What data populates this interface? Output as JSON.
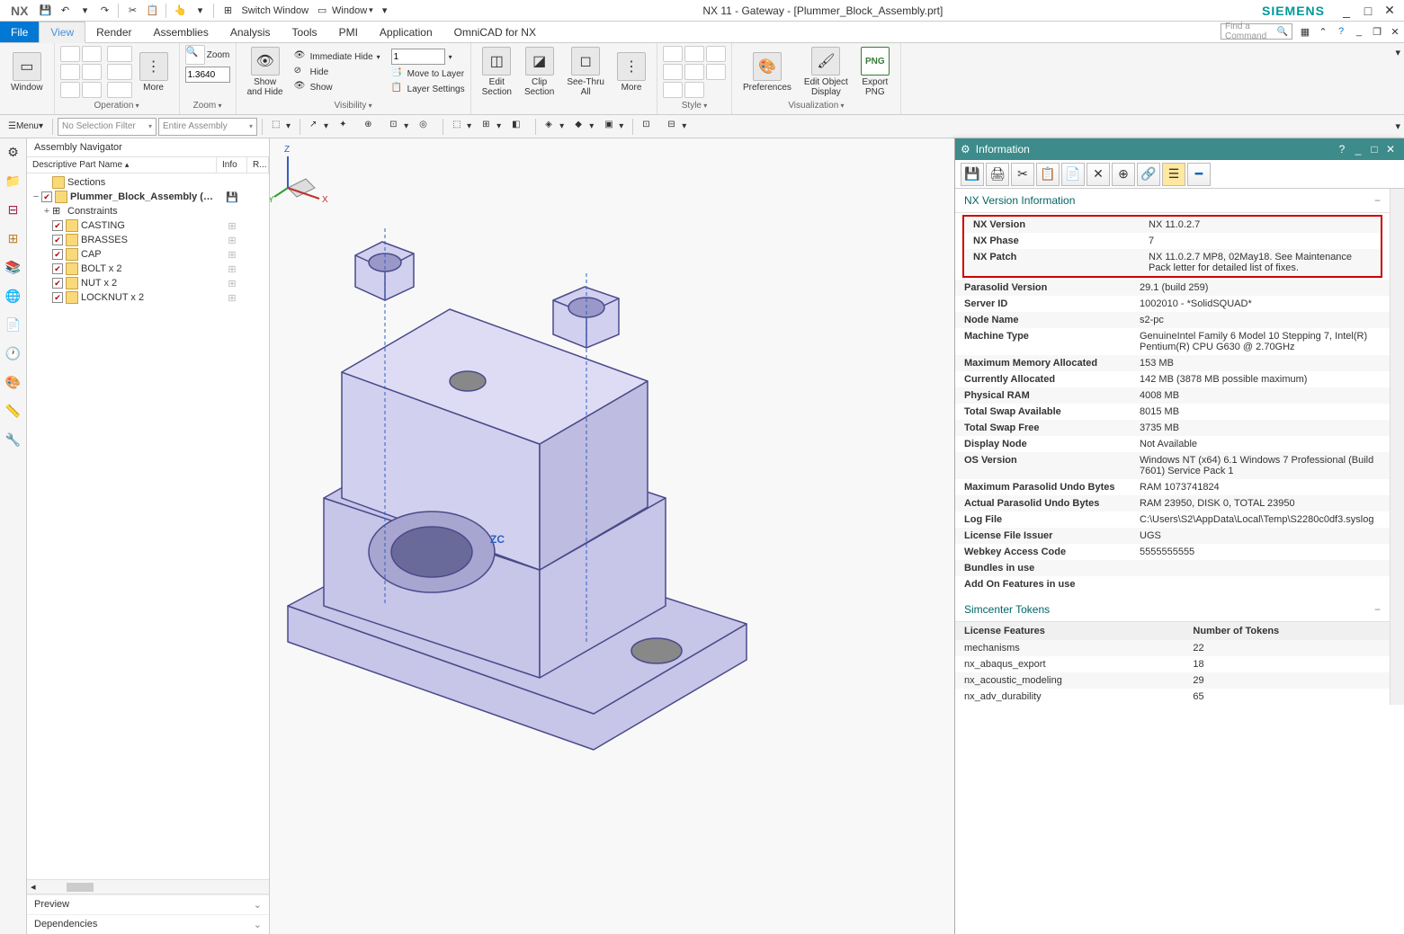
{
  "titlebar": {
    "app": "NX",
    "switch_window": "Switch Window",
    "window_menu": "Window",
    "title": "NX 11 - Gateway - [Plummer_Block_Assembly.prt]",
    "brand": "SIEMENS"
  },
  "tabs": {
    "file": "File",
    "items": [
      "View",
      "Render",
      "Assemblies",
      "Analysis",
      "Tools",
      "PMI",
      "Application",
      "OmniCAD for NX"
    ],
    "active": "View",
    "search_placeholder": "Find a Command"
  },
  "ribbon": {
    "window": {
      "label": "Window",
      "group": ""
    },
    "operation": {
      "group": "Operation",
      "more": "More"
    },
    "zoom": {
      "group": "Zoom",
      "zoom_btn": "Zoom",
      "value": "1.3640"
    },
    "showhide": {
      "btn": "Show\nand Hide",
      "immediate": "Immediate Hide",
      "hide": "Hide",
      "show": "Show"
    },
    "visibility": {
      "group": "Visibility",
      "layer_combo": "1",
      "move_to_layer": "Move to Layer",
      "layer_settings": "Layer Settings"
    },
    "edit_clip": {
      "edit_section": "Edit\nSection",
      "clip_section": "Clip\nSection",
      "see_thru": "See-Thru\nAll",
      "more": "More"
    },
    "style": {
      "group": "Style"
    },
    "viz": {
      "group": "Visualization",
      "preferences": "Preferences",
      "edit_obj": "Edit Object\nDisplay",
      "export_png": "Export\nPNG",
      "png_badge": "PNG"
    }
  },
  "toolbar2": {
    "menu": "Menu",
    "no_sel_filter": "No Selection Filter",
    "entire_asm": "Entire Assembly"
  },
  "nav": {
    "title": "Assembly Navigator",
    "cols": {
      "name": "Descriptive Part Name",
      "info": "Info",
      "r": "R..."
    },
    "sections": "Sections",
    "root": "Plummer_Block_Assembly (O...",
    "constraints": "Constraints",
    "parts": [
      "CASTING",
      "BRASSES",
      "CAP",
      "BOLT x 2",
      "NUT x 2",
      "LOCKNUT x 2"
    ],
    "preview": "Preview",
    "dependencies": "Dependencies"
  },
  "info": {
    "title": "Information",
    "section1": "NX Version Information",
    "rows": [
      {
        "k": "NX Version",
        "v": "NX 11.0.2.7"
      },
      {
        "k": "NX Phase",
        "v": "7"
      },
      {
        "k": "NX Patch",
        "v": "NX 11.0.2.7 MP8, 02May18. See Maintenance Pack letter for detailed list of fixes."
      },
      {
        "k": "Parasolid Version",
        "v": "29.1 (build 259)"
      },
      {
        "k": "Server ID",
        "v": "1002010 - *SolidSQUAD*"
      },
      {
        "k": "Node Name",
        "v": "s2-pc"
      },
      {
        "k": "Machine Type",
        "v": "GenuineIntel Family 6 Model 10 Stepping 7, Intel(R) Pentium(R) CPU G630 @ 2.70GHz"
      },
      {
        "k": "Maximum Memory Allocated",
        "v": "153 MB"
      },
      {
        "k": "Currently Allocated",
        "v": "142 MB (3878 MB possible maximum)"
      },
      {
        "k": "Physical RAM",
        "v": "4008 MB"
      },
      {
        "k": "Total Swap Available",
        "v": "8015 MB"
      },
      {
        "k": "Total Swap Free",
        "v": "3735 MB"
      },
      {
        "k": "Display Node",
        "v": "Not Available"
      },
      {
        "k": "OS Version",
        "v": "Windows NT (x64) 6.1 Windows 7 Professional (Build 7601) Service Pack 1"
      },
      {
        "k": "Maximum Parasolid Undo Bytes",
        "v": "RAM 1073741824"
      },
      {
        "k": "Actual Parasolid Undo Bytes",
        "v": "RAM 23950, DISK 0, TOTAL 23950"
      },
      {
        "k": "Log File",
        "v": "C:\\Users\\S2\\AppData\\Local\\Temp\\S2280c0df3.syslog"
      },
      {
        "k": "License File Issuer",
        "v": "UGS"
      },
      {
        "k": "Webkey Access Code",
        "v": "5555555555"
      },
      {
        "k": "Bundles in use",
        "v": ""
      },
      {
        "k": "Add On Features in use",
        "v": ""
      }
    ],
    "highlight_rows": 3,
    "section2": "Simcenter Tokens",
    "tokens_cols": {
      "feat": "License Features",
      "num": "Number of Tokens"
    },
    "tokens": [
      {
        "f": "mechanisms",
        "n": "22"
      },
      {
        "f": "nx_abaqus_export",
        "n": "18"
      },
      {
        "f": "nx_acoustic_modeling",
        "n": "29"
      },
      {
        "f": "nx_adv_durability",
        "n": "65"
      }
    ]
  },
  "viewport": {
    "axis_labels": {
      "x": "X",
      "y": "Y",
      "z": "Z",
      "zc": "ZC"
    },
    "colors": {
      "part_fill": "#c7c5e8",
      "part_stroke": "#4a4a8a",
      "axis_x": "#c03030",
      "axis_y": "#30a030",
      "axis_z": "#3060c0"
    }
  }
}
